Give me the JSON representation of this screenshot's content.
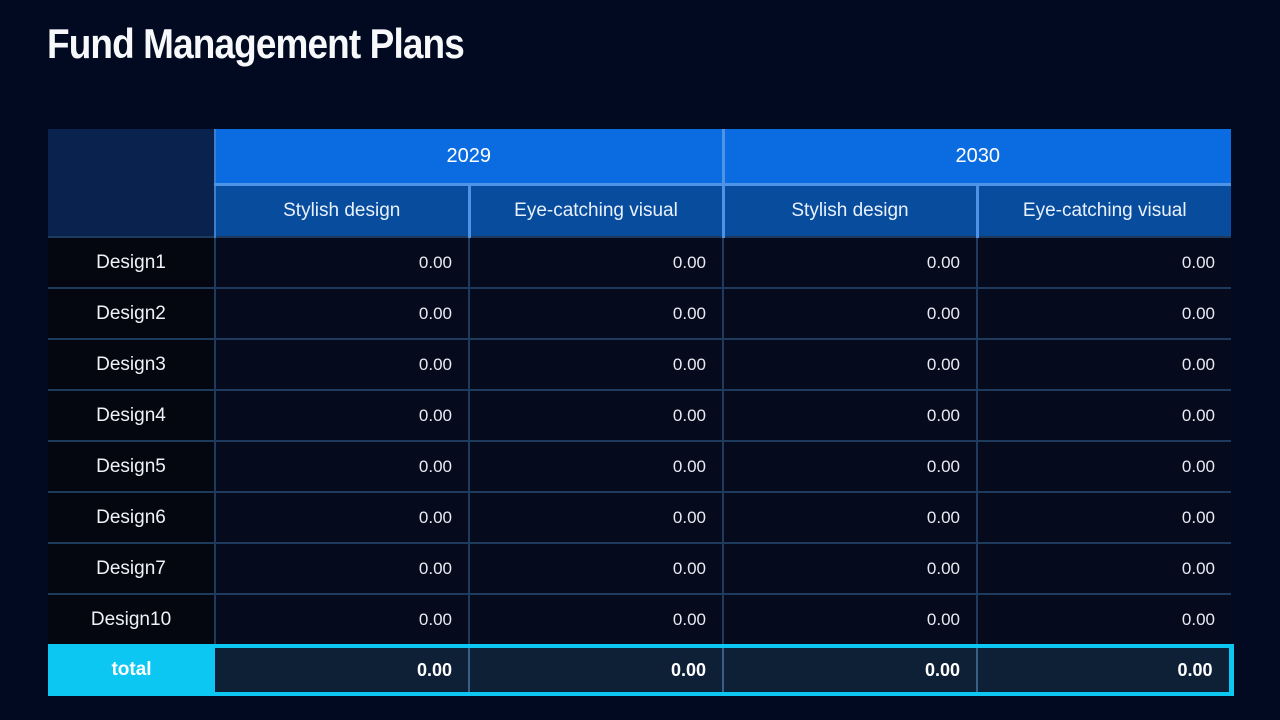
{
  "page": {
    "title": "Fund Management Plans",
    "background_color": "#020a21",
    "accent_color": "#0cc7f2",
    "year_header_color": "#0a6ce0",
    "sub_header_color": "#084c9e"
  },
  "table": {
    "year_headers": [
      "2029",
      "2030"
    ],
    "sub_headers": [
      "Stylish design",
      "Eye-catching visual",
      "Stylish design",
      "Eye-catching visual"
    ],
    "rows": [
      {
        "label": "Design1",
        "values": [
          "0.00",
          "0.00",
          "0.00",
          "0.00"
        ]
      },
      {
        "label": "Design2",
        "values": [
          "0.00",
          "0.00",
          "0.00",
          "0.00"
        ]
      },
      {
        "label": "Design3",
        "values": [
          "0.00",
          "0.00",
          "0.00",
          "0.00"
        ]
      },
      {
        "label": "Design4",
        "values": [
          "0.00",
          "0.00",
          "0.00",
          "0.00"
        ]
      },
      {
        "label": "Design5",
        "values": [
          "0.00",
          "0.00",
          "0.00",
          "0.00"
        ]
      },
      {
        "label": "Design6",
        "values": [
          "0.00",
          "0.00",
          "0.00",
          "0.00"
        ]
      },
      {
        "label": "Design7",
        "values": [
          "0.00",
          "0.00",
          "0.00",
          "0.00"
        ]
      },
      {
        "label": "Design10",
        "values": [
          "0.00",
          "0.00",
          "0.00",
          "0.00"
        ]
      }
    ],
    "total": {
      "label": "total",
      "values": [
        "0.00",
        "0.00",
        "0.00",
        "0.00"
      ]
    }
  }
}
